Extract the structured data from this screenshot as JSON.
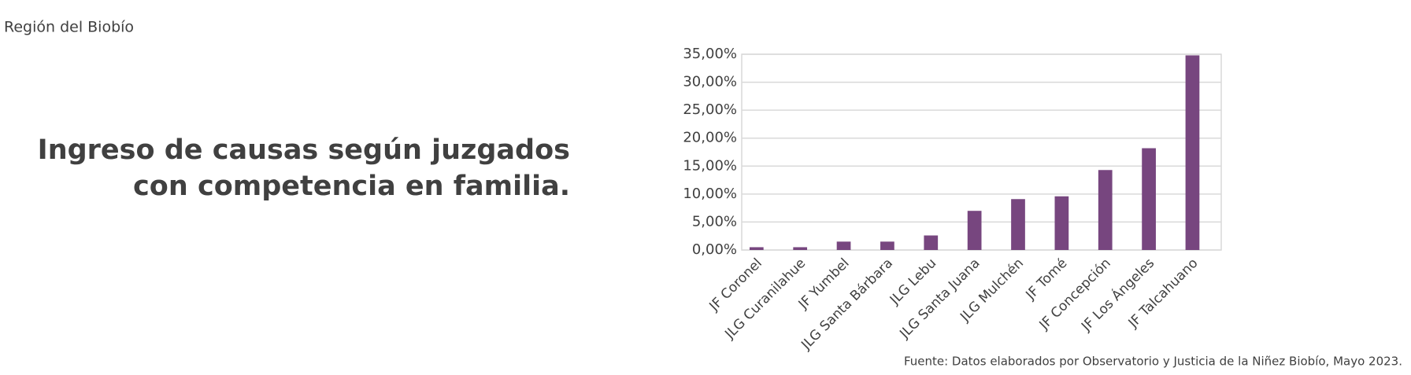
{
  "header": "Región del Biobío",
  "chart_data": {
    "type": "bar",
    "title": "Ingreso de causas según juzgados con competencia en familia.",
    "categories": [
      "JF Coronel",
      "JLG Curanilahue",
      "JF Yumbel",
      "JLG Santa Bárbara",
      "JLG Lebu",
      "JLG Santa Juana",
      "JLG Mulchén",
      "JF Tomé",
      "JF Concepción",
      "JF Los Ángeles",
      "JF Talcahuano"
    ],
    "values": [
      0.5,
      0.5,
      1.5,
      1.5,
      2.6,
      7.0,
      9.1,
      9.6,
      14.3,
      18.2,
      34.8
    ],
    "color": "#77467f",
    "ylim": [
      0,
      35
    ],
    "yticks": [
      {
        "value": 0,
        "label": "0,00%"
      },
      {
        "value": 5,
        "label": "5,00%"
      },
      {
        "value": 10,
        "label": "10,00%"
      },
      {
        "value": 15,
        "label": "15,00%"
      },
      {
        "value": 20,
        "label": "20,00%"
      },
      {
        "value": 25,
        "label": "25,00%"
      },
      {
        "value": 30,
        "label": "30,00%"
      },
      {
        "value": 35,
        "label": "35,00%"
      }
    ],
    "grid": true,
    "source": "Fuente: Datos elaborados por Observatorio y Justicia de la Niñez Biobío, Mayo 2023."
  }
}
